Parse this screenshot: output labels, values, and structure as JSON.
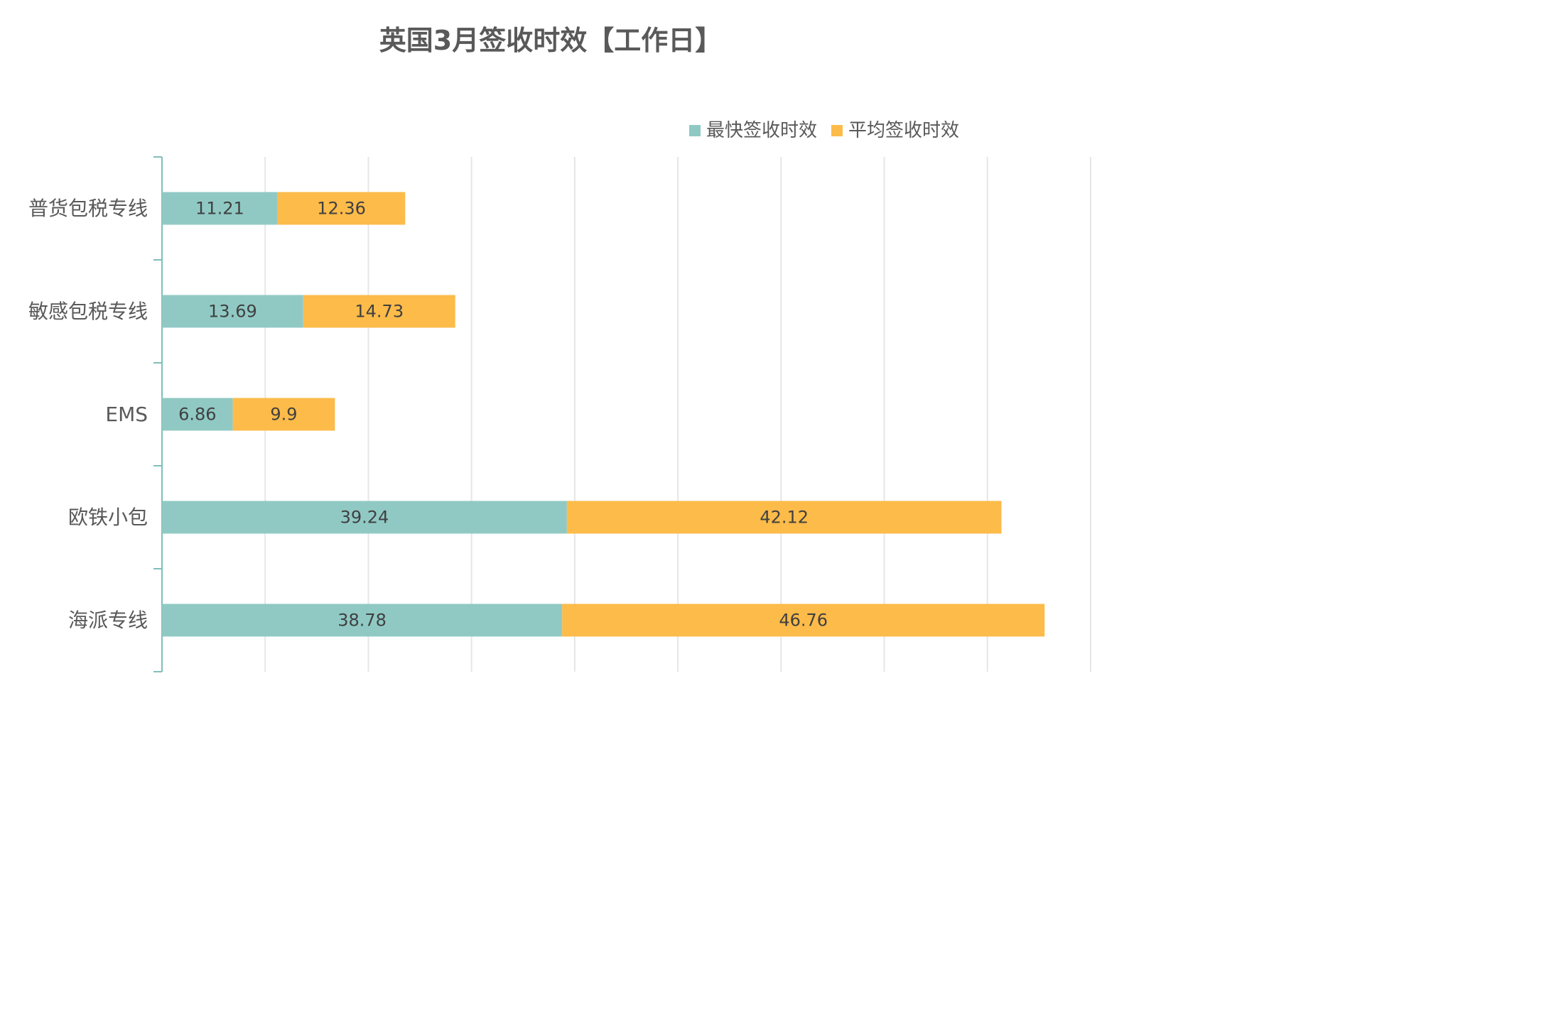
{
  "chart_data": {
    "type": "bar",
    "orientation": "horizontal",
    "stacked": true,
    "title": "英国3月签收时效【工作日】",
    "categories": [
      "普货包税专线",
      "敏感包税专线",
      "EMS",
      "欧铁小包",
      "海派专线"
    ],
    "series": [
      {
        "name": "最快签收时效",
        "color": "#90C9C4",
        "values": [
          11.21,
          13.69,
          6.86,
          39.24,
          38.78
        ]
      },
      {
        "name": "平均签收时效",
        "color": "#FDBB4A",
        "values": [
          12.36,
          14.73,
          9.9,
          42.12,
          46.76
        ]
      }
    ],
    "xlim": [
      0,
      90
    ],
    "x_tick_step": 10,
    "grid": true,
    "legend_position": "top-right",
    "data_labels": true,
    "colors": {
      "axis": "#7FBFB9",
      "grid": "#E6E6E6",
      "text": "#595959",
      "title": "#595959"
    }
  }
}
